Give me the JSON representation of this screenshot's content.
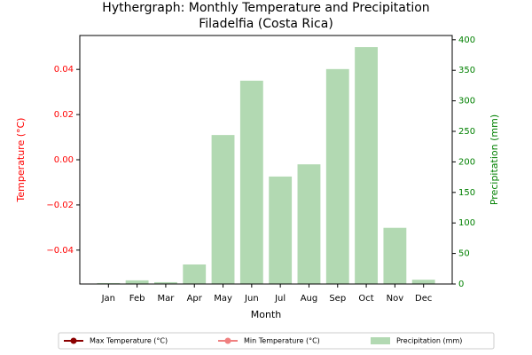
{
  "chart_data": {
    "type": "bar",
    "title": "Hythergraph: Monthly Temperature and Precipitation",
    "subtitle": "Filadelfia (Costa Rica)",
    "xlabel": "Month",
    "ylabel": "Temperature (°C)",
    "y2label": "Precipitation (mm)",
    "categories": [
      "Jan",
      "Feb",
      "Mar",
      "Apr",
      "May",
      "Jun",
      "Jul",
      "Aug",
      "Sep",
      "Oct",
      "Nov",
      "Dec"
    ],
    "series": [
      {
        "name": "Max Temperature (°C)",
        "color": "#8b0000",
        "type": "line",
        "values": [
          null,
          null,
          null,
          null,
          null,
          null,
          null,
          null,
          null,
          null,
          null,
          null
        ]
      },
      {
        "name": "Min Temperature (°C)",
        "color": "#f08080",
        "type": "line",
        "values": [
          null,
          null,
          null,
          null,
          null,
          null,
          null,
          null,
          null,
          null,
          null,
          null
        ]
      },
      {
        "name": "Precipitation (mm)",
        "color": "#b2d9b2",
        "type": "bar",
        "axis": "y2",
        "values": [
          1.5,
          6,
          3,
          32,
          244,
          333,
          176,
          196,
          352,
          388,
          92,
          7
        ]
      }
    ],
    "ylim": [
      -0.055,
      0.055
    ],
    "yticks": [
      {
        "value": -0.04,
        "label": "−0.04"
      },
      {
        "value": -0.02,
        "label": "−0.02"
      },
      {
        "value": 0,
        "label": "0.00"
      },
      {
        "value": 0.02,
        "label": "0.02"
      },
      {
        "value": 0.04,
        "label": "0.04"
      }
    ],
    "y2lim": [
      0,
      407
    ],
    "y2ticks": [
      0,
      50,
      100,
      150,
      200,
      250,
      300,
      350,
      400
    ],
    "ycolor": "#ff0000",
    "y2color": "#008000",
    "legend": "bottom"
  }
}
